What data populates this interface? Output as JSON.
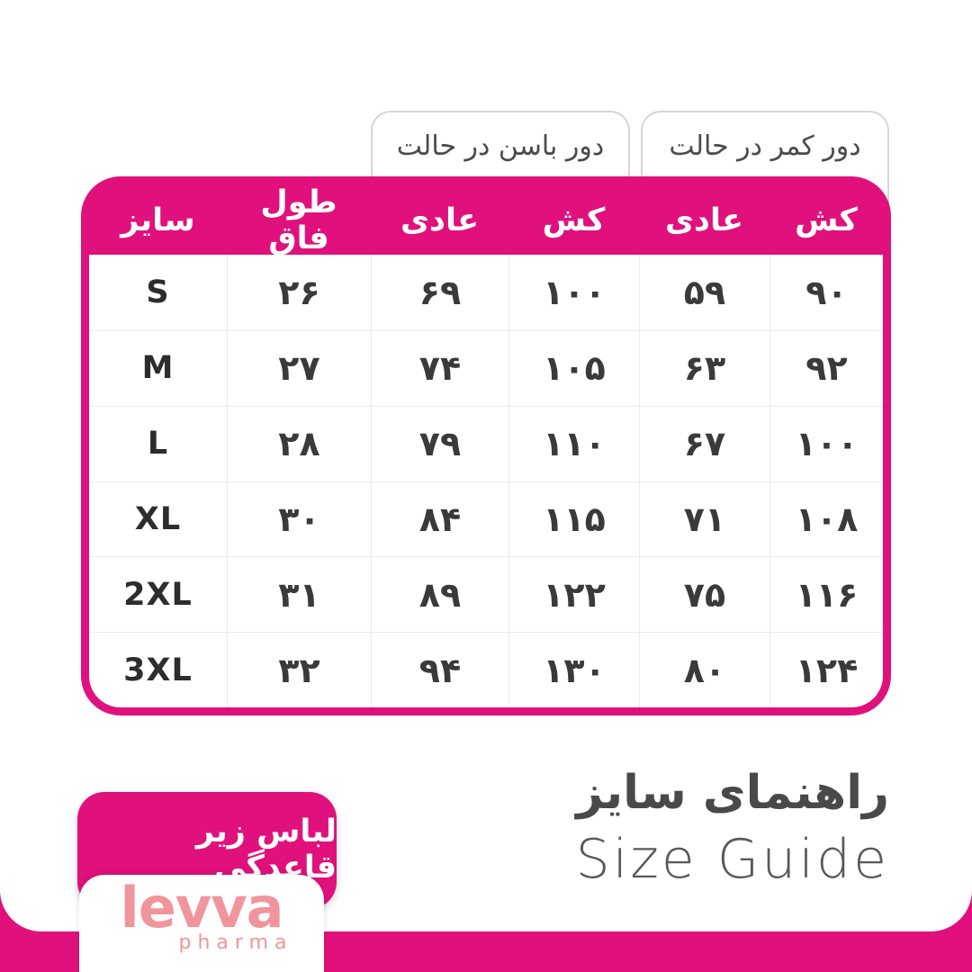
{
  "colors": {
    "magenta": "#E0117C",
    "salmon": "#F2949C",
    "cell_text": "#3A3A3A",
    "title_gray": "#494949",
    "grid_line": "#E9E9F3"
  },
  "group_headers": {
    "hip": "دور باسن در حالت",
    "waist": "دور کمر در حالت"
  },
  "table": {
    "columns": [
      "سایز",
      "طول فاق",
      "عادی",
      "کش",
      "عادی",
      "کش"
    ],
    "rows": [
      {
        "size": "S",
        "rise": "۲۶",
        "hip_normal": "۶۹",
        "hip_stretch": "۱۰۰",
        "waist_normal": "۵۹",
        "waist_stretch": "۹۰"
      },
      {
        "size": "M",
        "rise": "۲۷",
        "hip_normal": "۷۴",
        "hip_stretch": "۱۰۵",
        "waist_normal": "۶۳",
        "waist_stretch": "۹۲"
      },
      {
        "size": "L",
        "rise": "۲۸",
        "hip_normal": "۷۹",
        "hip_stretch": "۱۱۰",
        "waist_normal": "۶۷",
        "waist_stretch": "۱۰۰"
      },
      {
        "size": "XL",
        "rise": "۳۰",
        "hip_normal": "۸۴",
        "hip_stretch": "۱۱۵",
        "waist_normal": "۷۱",
        "waist_stretch": "۱۰۸"
      },
      {
        "size": "2XL",
        "rise": "۳۱",
        "hip_normal": "۸۹",
        "hip_stretch": "۱۲۲",
        "waist_normal": "۷۵",
        "waist_stretch": "۱۱۶"
      },
      {
        "size": "3XL",
        "rise": "۳۲",
        "hip_normal": "۹۴",
        "hip_stretch": "۱۳۰",
        "waist_normal": "۸۰",
        "waist_stretch": "۱۲۴"
      }
    ]
  },
  "title": {
    "fa": "راهنمای سایز",
    "en": "Size Guide"
  },
  "badge": {
    "label": "لباس زیر قاعدگی"
  },
  "logo": {
    "name": "levva",
    "sub": "pharma"
  },
  "chart_data": {
    "type": "table",
    "title": "راهنمای سایز / Size Guide",
    "columns": [
      "size",
      "rise_length",
      "hip_normal",
      "hip_stretched",
      "waist_normal",
      "waist_stretched"
    ],
    "column_labels_fa": [
      "سایز",
      "طول فاق",
      "دور باسن در حالت عادی",
      "دور باسن در حالت کش",
      "دور کمر در حالت عادی",
      "دور کمر در حالت کش"
    ],
    "rows": [
      [
        "S",
        26,
        69,
        100,
        59,
        90
      ],
      [
        "M",
        27,
        74,
        105,
        63,
        92
      ],
      [
        "L",
        28,
        79,
        110,
        67,
        100
      ],
      [
        "XL",
        30,
        84,
        115,
        71,
        108
      ],
      [
        "2XL",
        31,
        89,
        122,
        75,
        116
      ],
      [
        "3XL",
        32,
        94,
        130,
        80,
        124
      ]
    ]
  }
}
